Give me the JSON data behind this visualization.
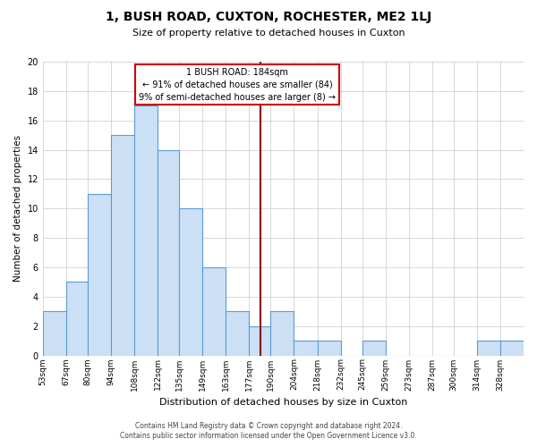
{
  "title": "1, BUSH ROAD, CUXTON, ROCHESTER, ME2 1LJ",
  "subtitle": "Size of property relative to detached houses in Cuxton",
  "xlabel": "Distribution of detached houses by size in Cuxton",
  "ylabel": "Number of detached properties",
  "bar_color": "#cce0f5",
  "bar_edge_color": "#5b9bd5",
  "background_color": "#ffffff",
  "grid_color": "#c8c8c8",
  "bin_labels": [
    "53sqm",
    "67sqm",
    "80sqm",
    "94sqm",
    "108sqm",
    "122sqm",
    "135sqm",
    "149sqm",
    "163sqm",
    "177sqm",
    "190sqm",
    "204sqm",
    "218sqm",
    "232sqm",
    "245sqm",
    "259sqm",
    "273sqm",
    "287sqm",
    "300sqm",
    "314sqm",
    "328sqm"
  ],
  "bin_edges": [
    53,
    67,
    80,
    94,
    108,
    122,
    135,
    149,
    163,
    177,
    190,
    204,
    218,
    232,
    245,
    259,
    273,
    287,
    300,
    314,
    328,
    342
  ],
  "counts": [
    3,
    5,
    11,
    15,
    17,
    14,
    10,
    6,
    3,
    2,
    3,
    1,
    1,
    0,
    1,
    0,
    0,
    0,
    0,
    1,
    1
  ],
  "ylim": [
    0,
    20
  ],
  "yticks": [
    0,
    2,
    4,
    6,
    8,
    10,
    12,
    14,
    16,
    18,
    20
  ],
  "vline_x": 184,
  "vline_color": "#8b0000",
  "annotation_text_line1": "1 BUSH ROAD: 184sqm",
  "annotation_text_line2": "← 91% of detached houses are smaller (84)",
  "annotation_text_line3": "9% of semi-detached houses are larger (8) →",
  "annotation_box_color": "#ffffff",
  "annotation_box_edge": "#cc0000",
  "footer_line1": "Contains HM Land Registry data © Crown copyright and database right 2024.",
  "footer_line2": "Contains public sector information licensed under the Open Government Licence v3.0."
}
